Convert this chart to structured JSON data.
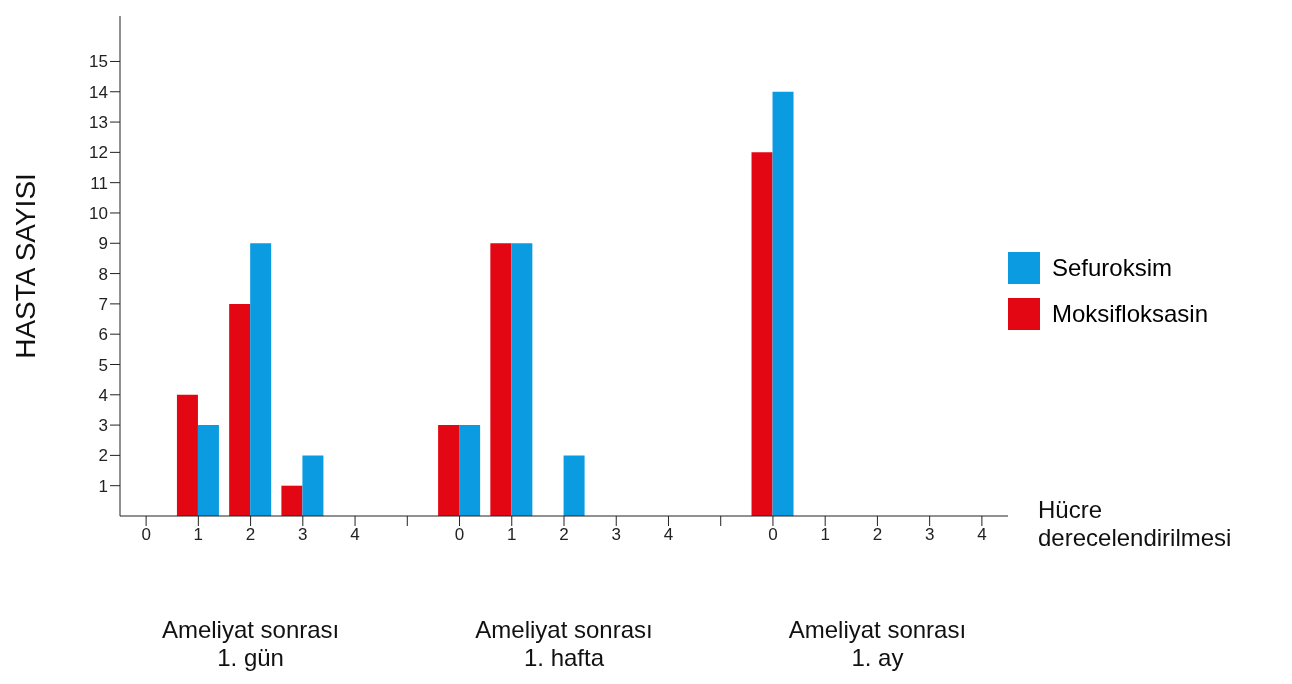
{
  "chart_data": {
    "type": "bar",
    "ylabel": "HASTA SAYISI",
    "xlabel": "Hücre\nderecelendirilmesi",
    "categories": [
      "0",
      "1",
      "2",
      "3",
      "4",
      null,
      "0",
      "1",
      "2",
      "3",
      "4",
      null,
      "0",
      "1",
      "2",
      "3",
      "4"
    ],
    "series": [
      {
        "name": "Moksifloksasin",
        "color": "#e30613",
        "values": [
          0,
          4,
          7,
          1,
          0,
          null,
          3,
          9,
          0,
          0,
          0,
          null,
          12,
          0,
          0,
          0,
          0
        ]
      },
      {
        "name": "Sefuroksim",
        "color": "#0a9be0",
        "values": [
          0,
          3,
          9,
          2,
          0,
          null,
          3,
          9,
          2,
          0,
          0,
          null,
          14,
          0,
          0,
          0,
          0
        ]
      }
    ],
    "ylim": [
      0,
      16.5
    ],
    "yticks": [
      1,
      2,
      3,
      4,
      5,
      6,
      7,
      8,
      9,
      10,
      11,
      12,
      13,
      14,
      15
    ],
    "grid": false,
    "legend": "right",
    "annotations": [
      "Ameliyat sonrası\n1. gün",
      "Ameliyat sonrası\n1. hafta",
      "Ameliyat sonrası\n1. ay"
    ]
  }
}
